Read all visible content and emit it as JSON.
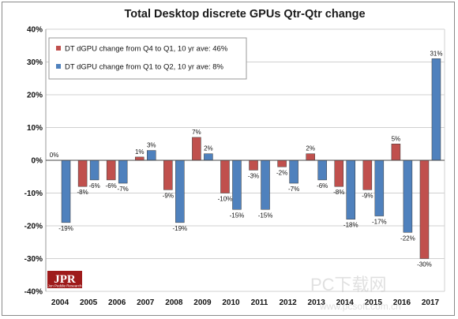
{
  "chart_data": {
    "type": "bar",
    "title": "Total Desktop discrete GPUs Qtr-Qtr change",
    "categories": [
      "2004",
      "2005",
      "2006",
      "2007",
      "2008",
      "2009",
      "2010",
      "2011",
      "2012",
      "2013",
      "2014",
      "2015",
      "2016",
      "2017"
    ],
    "series": [
      {
        "name": "DT dGPU change from Q4 to Q1, 10 yr ave: 46%",
        "color": "#c0504d",
        "values": [
          0,
          -8,
          -6,
          1,
          -9,
          7,
          -10,
          -3,
          -2,
          2,
          -8,
          -9,
          5,
          -30
        ],
        "labels": [
          "0%",
          "-8%",
          "-6%",
          "1%",
          "-9%",
          "7%",
          "-10%",
          "-3%",
          "-2%",
          "2%",
          "-8%",
          "-9%",
          "5%",
          "-30%"
        ]
      },
      {
        "name": "DT dGPU change from Q1 to Q2, 10 yr ave: 8%",
        "color": "#4f81bd",
        "values": [
          -19,
          -6,
          -7,
          3,
          -19,
          2,
          -15,
          -15,
          -7,
          -6,
          -18,
          -17,
          -22,
          31
        ],
        "labels": [
          "-19%",
          "-6%",
          "-7%",
          "3%",
          "-19%",
          "2%",
          "-15%",
          "-15%",
          "-7%",
          "-6%",
          "-18%",
          "-17%",
          "-22%",
          "31%"
        ]
      }
    ],
    "ylim": [
      -40,
      40
    ],
    "yticks": [
      -40,
      -30,
      -20,
      -10,
      0,
      10,
      20,
      30,
      40
    ],
    "ytick_labels": [
      "-40%",
      "-30%",
      "-20%",
      "-10%",
      "0%",
      "10%",
      "20%",
      "30%",
      "40%"
    ],
    "grid": true,
    "legend_position": "top-left"
  },
  "logo": {
    "text": "JPR",
    "subtext": "Jon Peddie Research"
  },
  "watermark": {
    "text": "PC下载网",
    "url": "www.pcsoft.com.cn"
  }
}
